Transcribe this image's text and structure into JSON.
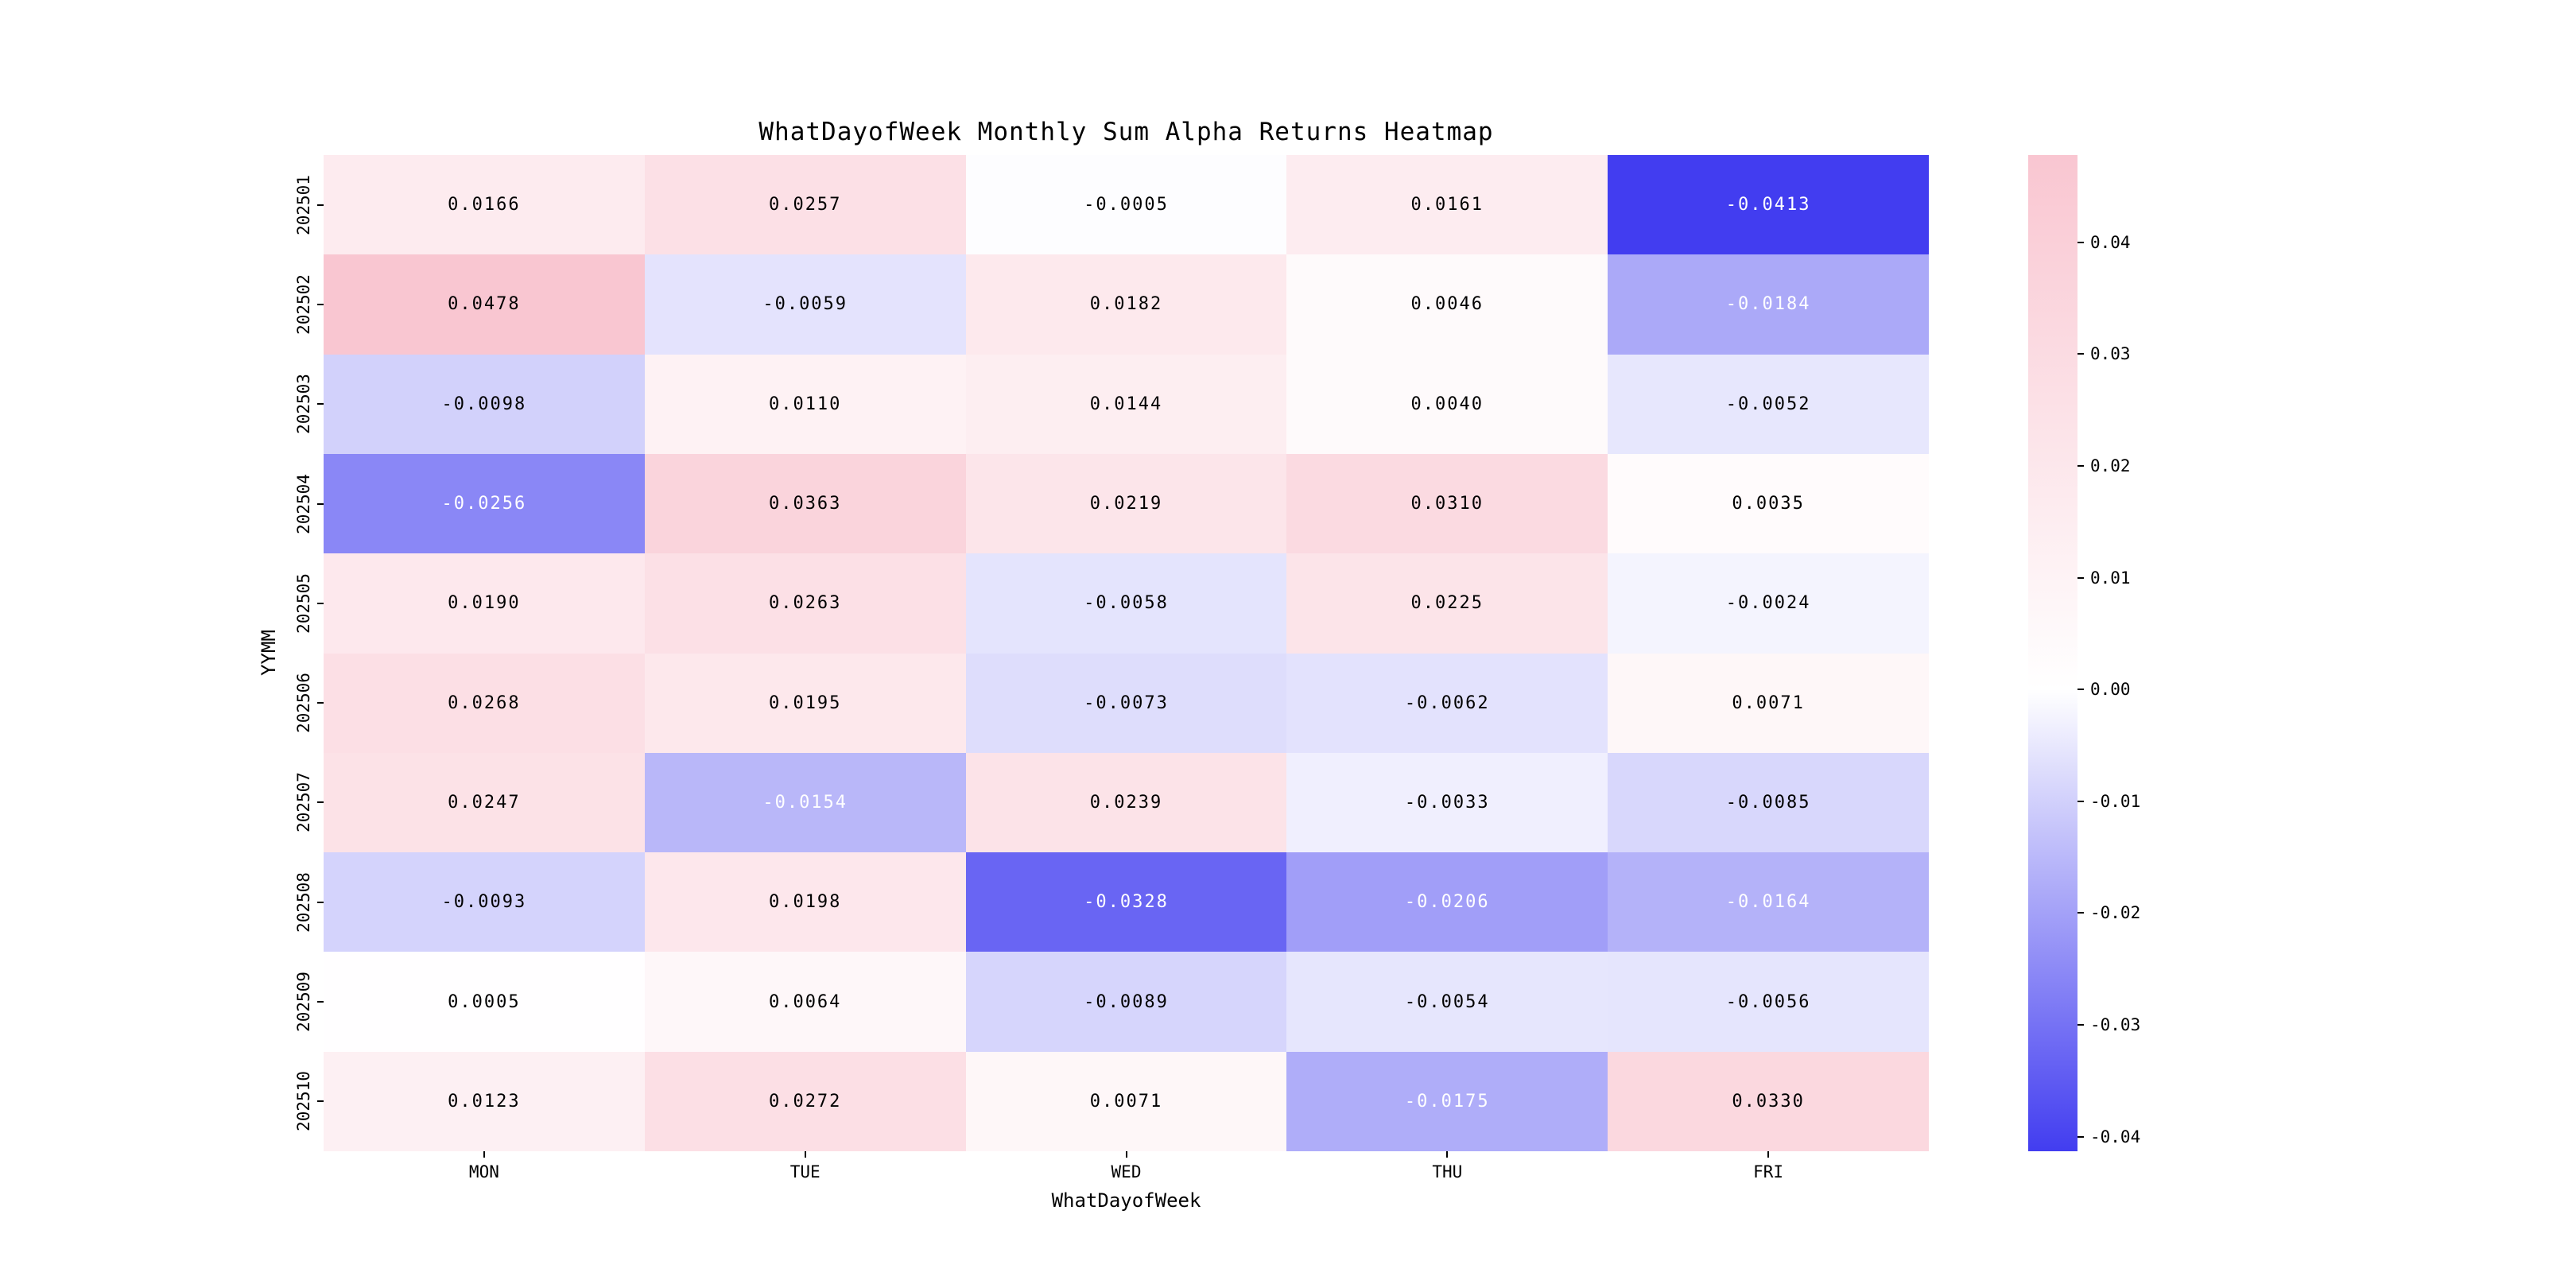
{
  "chart_data": {
    "type": "heatmap",
    "title": "WhatDayofWeek Monthly Sum Alpha Returns Heatmap",
    "xlabel": "WhatDayofWeek",
    "ylabel": "YYMM",
    "columns": [
      "MON",
      "TUE",
      "WED",
      "THU",
      "FRI"
    ],
    "rows": [
      "202501",
      "202502",
      "202503",
      "202504",
      "202505",
      "202506",
      "202507",
      "202508",
      "202509",
      "202510"
    ],
    "values": [
      [
        0.0166,
        0.0257,
        -0.0005,
        0.0161,
        -0.0413
      ],
      [
        0.0478,
        -0.0059,
        0.0182,
        0.0046,
        -0.0184
      ],
      [
        -0.0098,
        0.011,
        0.0144,
        0.004,
        -0.0052
      ],
      [
        -0.0256,
        0.0363,
        0.0219,
        0.031,
        0.0035
      ],
      [
        0.019,
        0.0263,
        -0.0058,
        0.0225,
        -0.0024
      ],
      [
        0.0268,
        0.0195,
        -0.0073,
        -0.0062,
        0.0071
      ],
      [
        0.0247,
        -0.0154,
        0.0239,
        -0.0033,
        -0.0085
      ],
      [
        -0.0093,
        0.0198,
        -0.0328,
        -0.0206,
        -0.0164
      ],
      [
        0.0005,
        0.0064,
        -0.0089,
        -0.0054,
        -0.0056
      ],
      [
        0.0123,
        0.0272,
        0.0071,
        -0.0175,
        0.033
      ]
    ],
    "vmin": -0.0413,
    "vmax": 0.0478,
    "colorbar_ticks": [
      0.04,
      0.03,
      0.02,
      0.01,
      0.0,
      -0.01,
      -0.02,
      -0.03,
      -0.04
    ],
    "colors": {
      "positive": "#f9c6d1",
      "negative": "#423df0",
      "zero": "#ffffff"
    },
    "legend_position": "right",
    "grid": false,
    "annotation_decimals": 4,
    "text_color_threshold": -0.015
  }
}
